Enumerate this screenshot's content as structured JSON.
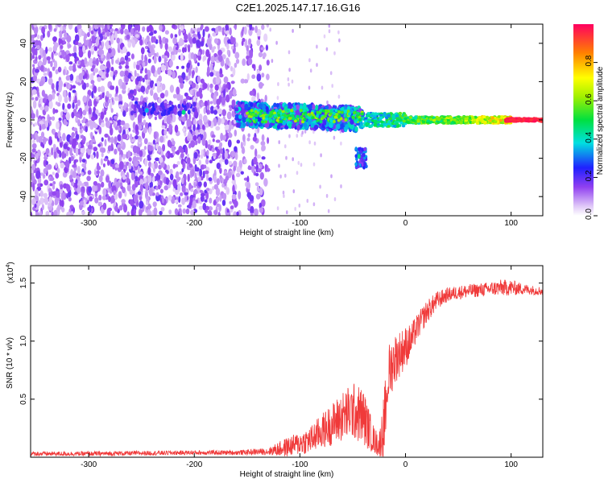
{
  "title": "C2E1.2025.147.17.16.G16",
  "chart_data": [
    {
      "type": "heatmap",
      "xlabel": "Height of straight line (km)",
      "ylabel": "Frequency (Hz)",
      "xlim": [
        -355,
        130
      ],
      "ylim": [
        -50,
        50
      ],
      "x_ticks": [
        -300,
        -200,
        -100,
        0,
        100
      ],
      "x_tick_labels": [
        "-300",
        "-200",
        "-100",
        "0",
        "100"
      ],
      "y_ticks": [
        -40,
        -20,
        0,
        20,
        40
      ],
      "y_tick_labels": [
        "-40",
        "-20",
        "0",
        "20",
        "40"
      ],
      "colorbar": {
        "label": "Normalized spectral amplitude",
        "range": [
          0,
          1
        ],
        "ticks": [
          0.0,
          0.2,
          0.4,
          0.6,
          0.8
        ],
        "tick_labels": [
          "0.0",
          "0.2",
          "0.4",
          "0.6",
          "0.8"
        ]
      },
      "features": [
        {
          "x": [
            -355,
            -130
          ],
          "freq": [
            -50,
            50
          ],
          "amplitude": 0.15
        },
        {
          "x": [
            -260,
            -200
          ],
          "freq": [
            2,
            10
          ],
          "amplitude": 0.3
        },
        {
          "x": [
            -160,
            -40
          ],
          "freq": [
            -5,
            10
          ],
          "amplitude": 0.4
        },
        {
          "x": [
            -45,
            -38
          ],
          "freq": [
            -25,
            -15
          ],
          "amplitude": 0.3
        },
        {
          "x": [
            -40,
            100
          ],
          "freq": [
            -2,
            3
          ],
          "amplitude": 0.7
        },
        {
          "x": [
            100,
            130
          ],
          "freq": [
            -1,
            1
          ],
          "amplitude": 0.95
        }
      ]
    },
    {
      "type": "line",
      "xlabel": "Height of straight line (km)",
      "ylabel": "SNR (10 * v/v)",
      "multiplier_label": "(x10",
      "multiplier_exp": "4",
      "multiplier_close": ")",
      "xlim": [
        -355,
        130
      ],
      "ylim": [
        0,
        1.65
      ],
      "x_ticks": [
        -300,
        -200,
        -100,
        0,
        100
      ],
      "x_tick_labels": [
        "-300",
        "-200",
        "-100",
        "0",
        "100"
      ],
      "y_ticks": [
        0.5,
        1.0,
        1.5
      ],
      "y_tick_labels": [
        "0.5",
        "1.0",
        "1.5"
      ],
      "color": "#f03a3a",
      "envelope": {
        "x": [
          -355,
          -300,
          -200,
          -160,
          -130,
          -115,
          -100,
          -90,
          -80,
          -70,
          -60,
          -50,
          -40,
          -30,
          -25,
          -20,
          -18,
          -15,
          -10,
          -5,
          0,
          5,
          10,
          20,
          30,
          40,
          50,
          60,
          70,
          80,
          90,
          100,
          110,
          120,
          130
        ],
        "mean": [
          0.03,
          0.03,
          0.04,
          0.04,
          0.05,
          0.08,
          0.12,
          0.15,
          0.22,
          0.28,
          0.35,
          0.4,
          0.35,
          0.15,
          0.1,
          0.3,
          0.6,
          0.75,
          0.85,
          0.9,
          0.95,
          1.0,
          1.1,
          1.25,
          1.35,
          1.4,
          1.42,
          1.43,
          1.44,
          1.45,
          1.46,
          1.46,
          1.45,
          1.44,
          1.43
        ],
        "noise": [
          0.02,
          0.02,
          0.02,
          0.02,
          0.03,
          0.08,
          0.1,
          0.12,
          0.15,
          0.18,
          0.22,
          0.25,
          0.25,
          0.12,
          0.1,
          0.3,
          0.25,
          0.25,
          0.22,
          0.2,
          0.18,
          0.15,
          0.12,
          0.1,
          0.08,
          0.06,
          0.06,
          0.06,
          0.06,
          0.06,
          0.07,
          0.07,
          0.05,
          0.04,
          0.04
        ]
      }
    }
  ]
}
